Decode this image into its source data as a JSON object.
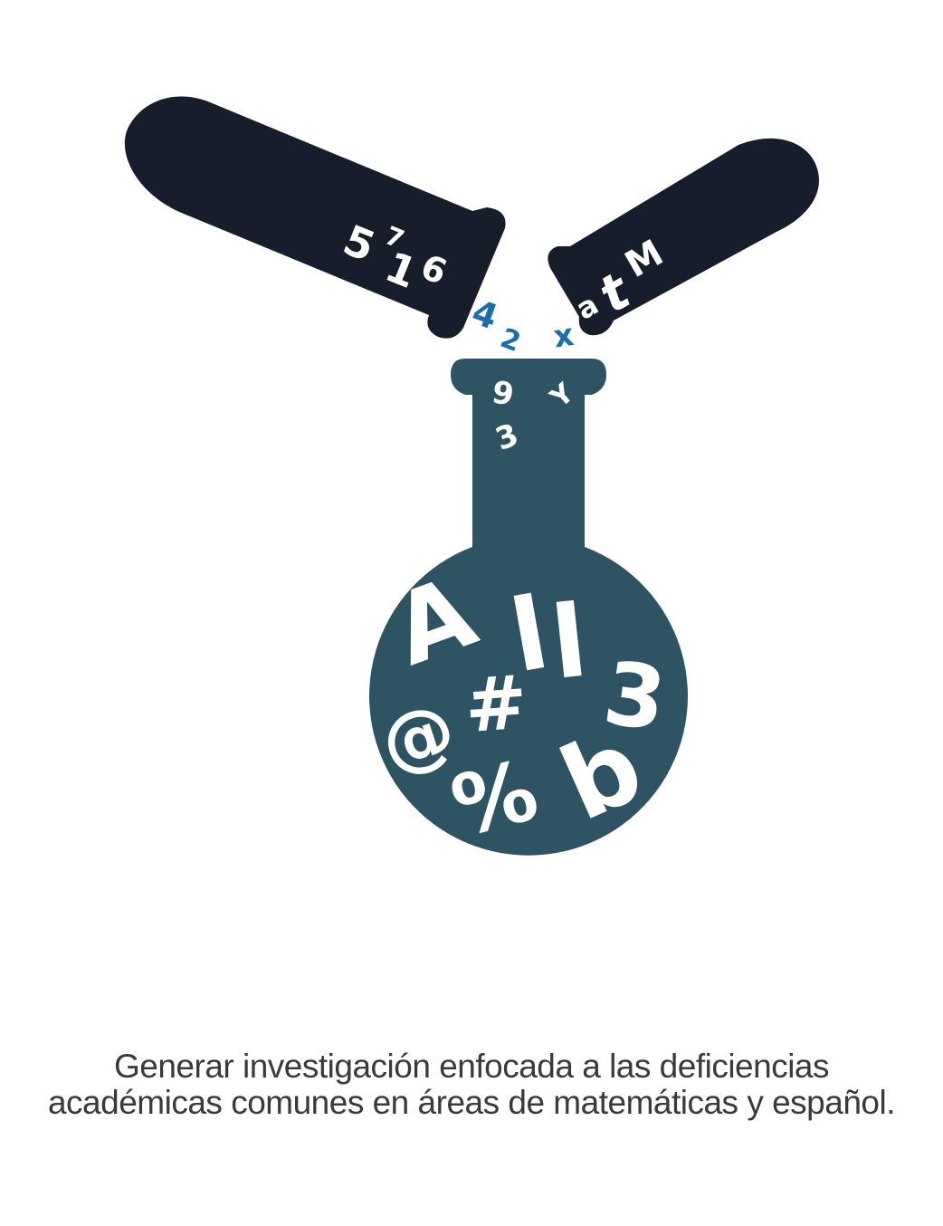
{
  "colors": {
    "tube_dark": "#181d2b",
    "flask_teal": "#2e5464",
    "accent_blue": "#1a6fa8",
    "glyph_white": "#ffffff",
    "caption_text": "#3a3a3a"
  },
  "left_tube": {
    "glyphs": [
      "5",
      "7",
      "1",
      "6"
    ]
  },
  "right_tube": {
    "glyphs": [
      "a",
      "t",
      "M"
    ]
  },
  "falling": {
    "left": [
      "4",
      "2"
    ],
    "right": [
      "x"
    ]
  },
  "flask_neck": {
    "glyphs": [
      "9",
      "3",
      "Y"
    ]
  },
  "flask_bulb": {
    "glyphs": [
      "A",
      "l",
      "l",
      "3",
      "@",
      "#",
      "%",
      "b"
    ]
  },
  "caption": {
    "line1": "Generar investigación enfocada a las deficiencias",
    "line2": "académicas comunes en áreas de matemáticas y español."
  }
}
